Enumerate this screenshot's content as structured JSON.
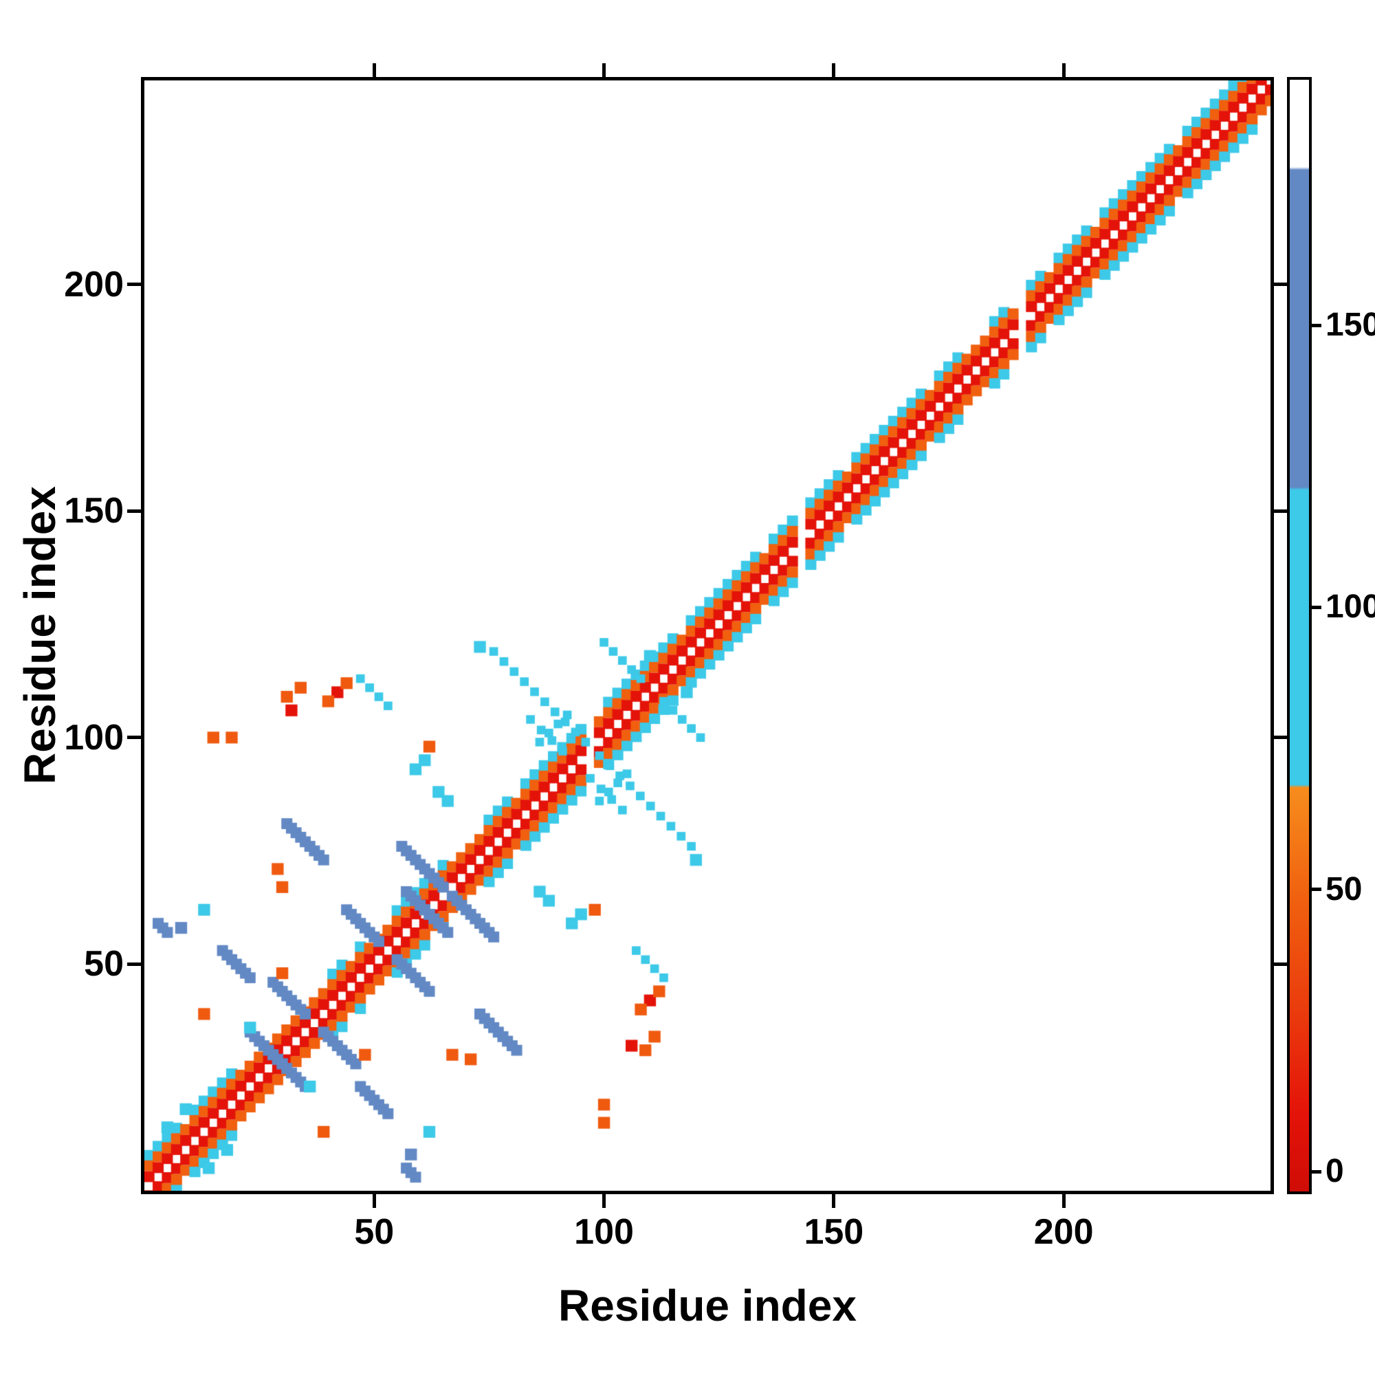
{
  "figure": {
    "background": "#ffffff",
    "description": "Protein residue-residue contact map heatmap with colorbar"
  },
  "chart_data": {
    "type": "heatmap",
    "title": "",
    "xlabel": "Residue index",
    "ylabel": "Residue index",
    "xlim": [
      0,
      245
    ],
    "ylim": [
      0,
      245
    ],
    "xticks": [
      "50",
      "100",
      "150",
      "200"
    ],
    "xtick_values": [
      50,
      100,
      150,
      200
    ],
    "yticks": [
      "50",
      "100",
      "150",
      "200"
    ],
    "ytick_values": [
      50,
      100,
      150,
      200
    ],
    "grid": false,
    "legend": "none",
    "symmetric": true,
    "feature_values": {
      "red": 10,
      "orange": 45,
      "cyan": 90,
      "blue": 140,
      "white": 190
    },
    "colorbar": {
      "position": "right",
      "ticks": [
        "0",
        "50",
        "100",
        "150"
      ],
      "tick_values": [
        0,
        50,
        100,
        150
      ],
      "range": [
        -4,
        194
      ],
      "stops": [
        [
          -4,
          "#cf0d06"
        ],
        [
          10,
          "#e41309"
        ],
        [
          28,
          "#ea3b0d"
        ],
        [
          48,
          "#f0600f"
        ],
        [
          68,
          "#f78d1d"
        ],
        [
          68.5,
          "#3dc9e8"
        ],
        [
          121,
          "#3dc9e8"
        ],
        [
          121.5,
          "#6289c4"
        ],
        [
          178,
          "#6289c4"
        ],
        [
          178.5,
          "#ffffff"
        ],
        [
          194,
          "#ffffff"
        ]
      ]
    },
    "diagonal": {
      "range": [
        1,
        245
      ],
      "white_core_halfwidth": 1,
      "rings": [
        {
          "offset": 2.1,
          "value": 10
        },
        {
          "offset": 4.5,
          "value": 48
        }
      ],
      "flank": {
        "offset": 6.8,
        "value": 90,
        "regions": [
          [
            1,
            20
          ],
          [
            40,
            47
          ],
          [
            55,
            66
          ],
          [
            74,
            96
          ],
          [
            99,
            141
          ],
          [
            144,
            178
          ],
          [
            185,
            196
          ],
          [
            199,
            244
          ]
        ]
      },
      "breaks": [
        97.5,
        142.5,
        190.5
      ]
    },
    "strips": [
      {
        "x1": 23,
        "y1": 35,
        "x2": 30,
        "y2": 28,
        "value": 140
      },
      {
        "x1": 28,
        "y1": 46,
        "x2": 35,
        "y2": 39,
        "value": 140
      },
      {
        "x1": 17,
        "y1": 53,
        "x2": 23,
        "y2": 47,
        "value": 140
      },
      {
        "x1": 31,
        "y1": 81,
        "x2": 39,
        "y2": 73,
        "value": 140
      },
      {
        "x1": 44,
        "y1": 62,
        "x2": 51,
        "y2": 55,
        "value": 140
      },
      {
        "x1": 57,
        "y1": 66,
        "x2": 62,
        "y2": 61,
        "value": 140
      },
      {
        "x1": 56,
        "y1": 76,
        "x2": 65,
        "y2": 67,
        "value": 140
      },
      {
        "x1": 3,
        "y1": 59,
        "x2": 5,
        "y2": 57,
        "value": 140
      }
    ],
    "dotted_lines": [
      {
        "x1": 76,
        "y1": 119,
        "x2": 96,
        "y2": 99,
        "value": 90,
        "step": 3
      },
      {
        "x1": 47,
        "y1": 113,
        "x2": 53,
        "y2": 107,
        "value": 90,
        "step": 3
      },
      {
        "x1": 84,
        "y1": 104,
        "x2": 91,
        "y2": 97,
        "value": 90,
        "step": 3
      },
      {
        "x1": 100,
        "y1": 121,
        "x2": 108,
        "y2": 113,
        "value": 90,
        "step": 3
      },
      {
        "x1": 99,
        "y1": 86,
        "x2": 105,
        "y2": 92,
        "value": 90,
        "step": 3
      }
    ],
    "dots": [
      {
        "x": 32,
        "y": 106,
        "value": 10
      },
      {
        "x": 42,
        "y": 110,
        "value": 10
      },
      {
        "x": 31,
        "y": 109,
        "value": 45
      },
      {
        "x": 34,
        "y": 111,
        "value": 45
      },
      {
        "x": 40,
        "y": 108,
        "value": 45
      },
      {
        "x": 44,
        "y": 112,
        "value": 45
      },
      {
        "x": 15,
        "y": 100,
        "value": 45
      },
      {
        "x": 19,
        "y": 100,
        "value": 45
      },
      {
        "x": 62,
        "y": 98,
        "value": 45
      },
      {
        "x": 30,
        "y": 67,
        "value": 45
      },
      {
        "x": 29,
        "y": 71,
        "value": 45
      },
      {
        "x": 13,
        "y": 39,
        "value": 45
      },
      {
        "x": 30,
        "y": 48,
        "value": 45
      },
      {
        "x": 8,
        "y": 58,
        "value": 140
      },
      {
        "x": 13,
        "y": 62,
        "value": 90
      },
      {
        "x": 59,
        "y": 93,
        "value": 90
      },
      {
        "x": 61,
        "y": 95,
        "value": 90
      },
      {
        "x": 64,
        "y": 88,
        "value": 90
      },
      {
        "x": 66,
        "y": 86,
        "value": 90
      },
      {
        "x": 73,
        "y": 120,
        "value": 90
      },
      {
        "x": 110,
        "y": 118,
        "value": 90
      },
      {
        "x": 36,
        "y": 23,
        "value": 90
      },
      {
        "x": 5,
        "y": 14,
        "value": 90
      },
      {
        "x": 9,
        "y": 18,
        "value": 90
      }
    ]
  }
}
